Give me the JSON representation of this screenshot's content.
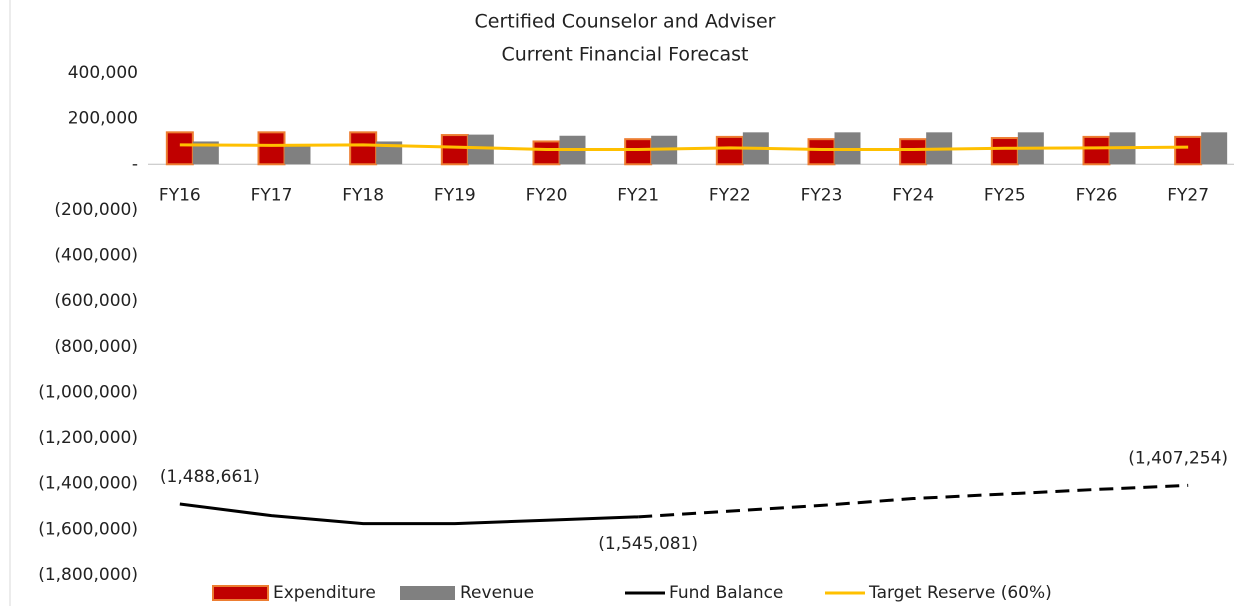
{
  "chart_data": {
    "type": "combo",
    "title": [
      "Certified Counselor and Adviser",
      "Current Financial Forecast"
    ],
    "categories": [
      "FY16",
      "FY17",
      "FY18",
      "FY19",
      "FY20",
      "FY21",
      "FY22",
      "FY23",
      "FY24",
      "FY25",
      "FY26",
      "FY27"
    ],
    "series": [
      {
        "name": "Expenditure",
        "kind": "bar",
        "color": "#c00000",
        "edge": "#ed7d31",
        "values": [
          140000,
          140000,
          140000,
          128000,
          100000,
          110000,
          120000,
          110000,
          110000,
          115000,
          120000,
          120000
        ]
      },
      {
        "name": "Revenue",
        "kind": "bar",
        "color": "#808080",
        "values": [
          100000,
          80000,
          100000,
          130000,
          125000,
          125000,
          140000,
          140000,
          140000,
          140000,
          140000,
          140000
        ]
      },
      {
        "name": "Fund Balance",
        "kind": "line",
        "color": "#000000",
        "dashed_from": 5,
        "values": [
          -1488661,
          -1540000,
          -1575000,
          -1575000,
          -1560000,
          -1545081,
          -1520000,
          -1495000,
          -1465000,
          -1445000,
          -1425000,
          -1407254
        ],
        "value_labels": [
          "(1,488,661)",
          null,
          null,
          null,
          null,
          "(1,545,081)",
          null,
          null,
          null,
          null,
          null,
          "(1,407,254)"
        ]
      },
      {
        "name": "Target Reserve (60%)",
        "kind": "line",
        "color": "#ffc000",
        "values": [
          85000,
          83000,
          85000,
          75000,
          65000,
          65000,
          72000,
          65000,
          65000,
          70000,
          72000,
          75000
        ]
      }
    ],
    "ylim": [
      -1800000,
      400000
    ],
    "yticks": [
      {
        "value": 400000,
        "label": "400,000"
      },
      {
        "value": 200000,
        "label": "200,000"
      },
      {
        "value": 0,
        "label": "-"
      },
      {
        "value": -200000,
        "label": "(200,000)"
      },
      {
        "value": -400000,
        "label": "(400,000)"
      },
      {
        "value": -600000,
        "label": "(600,000)"
      },
      {
        "value": -800000,
        "label": "(800,000)"
      },
      {
        "value": -1000000,
        "label": "(1,000,000)"
      },
      {
        "value": -1200000,
        "label": "(1,200,000)"
      },
      {
        "value": -1400000,
        "label": "(1,400,000)"
      },
      {
        "value": -1600000,
        "label": "(1,600,000)"
      },
      {
        "value": -1800000,
        "label": "(1,800,000)"
      }
    ],
    "legend": "bottom"
  }
}
